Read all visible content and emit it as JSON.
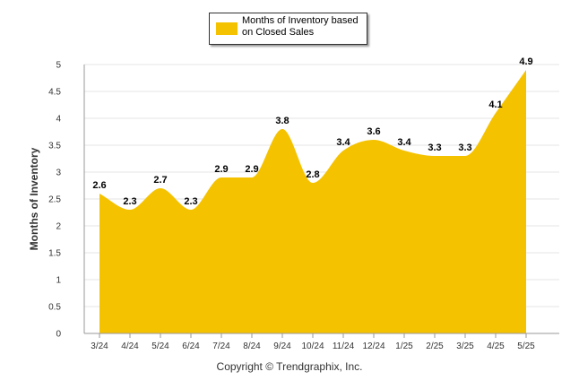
{
  "legend": {
    "label": "Months of Inventory based on Closed Sales"
  },
  "copyright": "Copyright © Trendgraphix, Inc.",
  "colors": {
    "area": "#F5C200",
    "grid": "#e6e6e6",
    "axis": "#999999"
  },
  "chart_data": {
    "type": "area",
    "categories": [
      "3/24",
      "4/24",
      "5/24",
      "6/24",
      "7/24",
      "8/24",
      "9/24",
      "10/24",
      "11/24",
      "12/24",
      "1/25",
      "2/25",
      "3/25",
      "4/25",
      "5/25"
    ],
    "series": [
      {
        "name": "Months of Inventory based on Closed Sales",
        "values": [
          2.6,
          2.3,
          2.7,
          2.3,
          2.9,
          2.9,
          3.8,
          2.8,
          3.4,
          3.6,
          3.4,
          3.3,
          3.3,
          4.1,
          4.9
        ]
      }
    ],
    "ylabel": "Months of Inventory",
    "ylim": [
      0,
      5
    ],
    "yticks": [
      "0",
      "0.5",
      "1",
      "1.5",
      "2",
      "2.5",
      "3",
      "3.5",
      "4",
      "4.5",
      "5"
    ],
    "grid": true,
    "legend_position": "top-center",
    "data_labels": true
  }
}
